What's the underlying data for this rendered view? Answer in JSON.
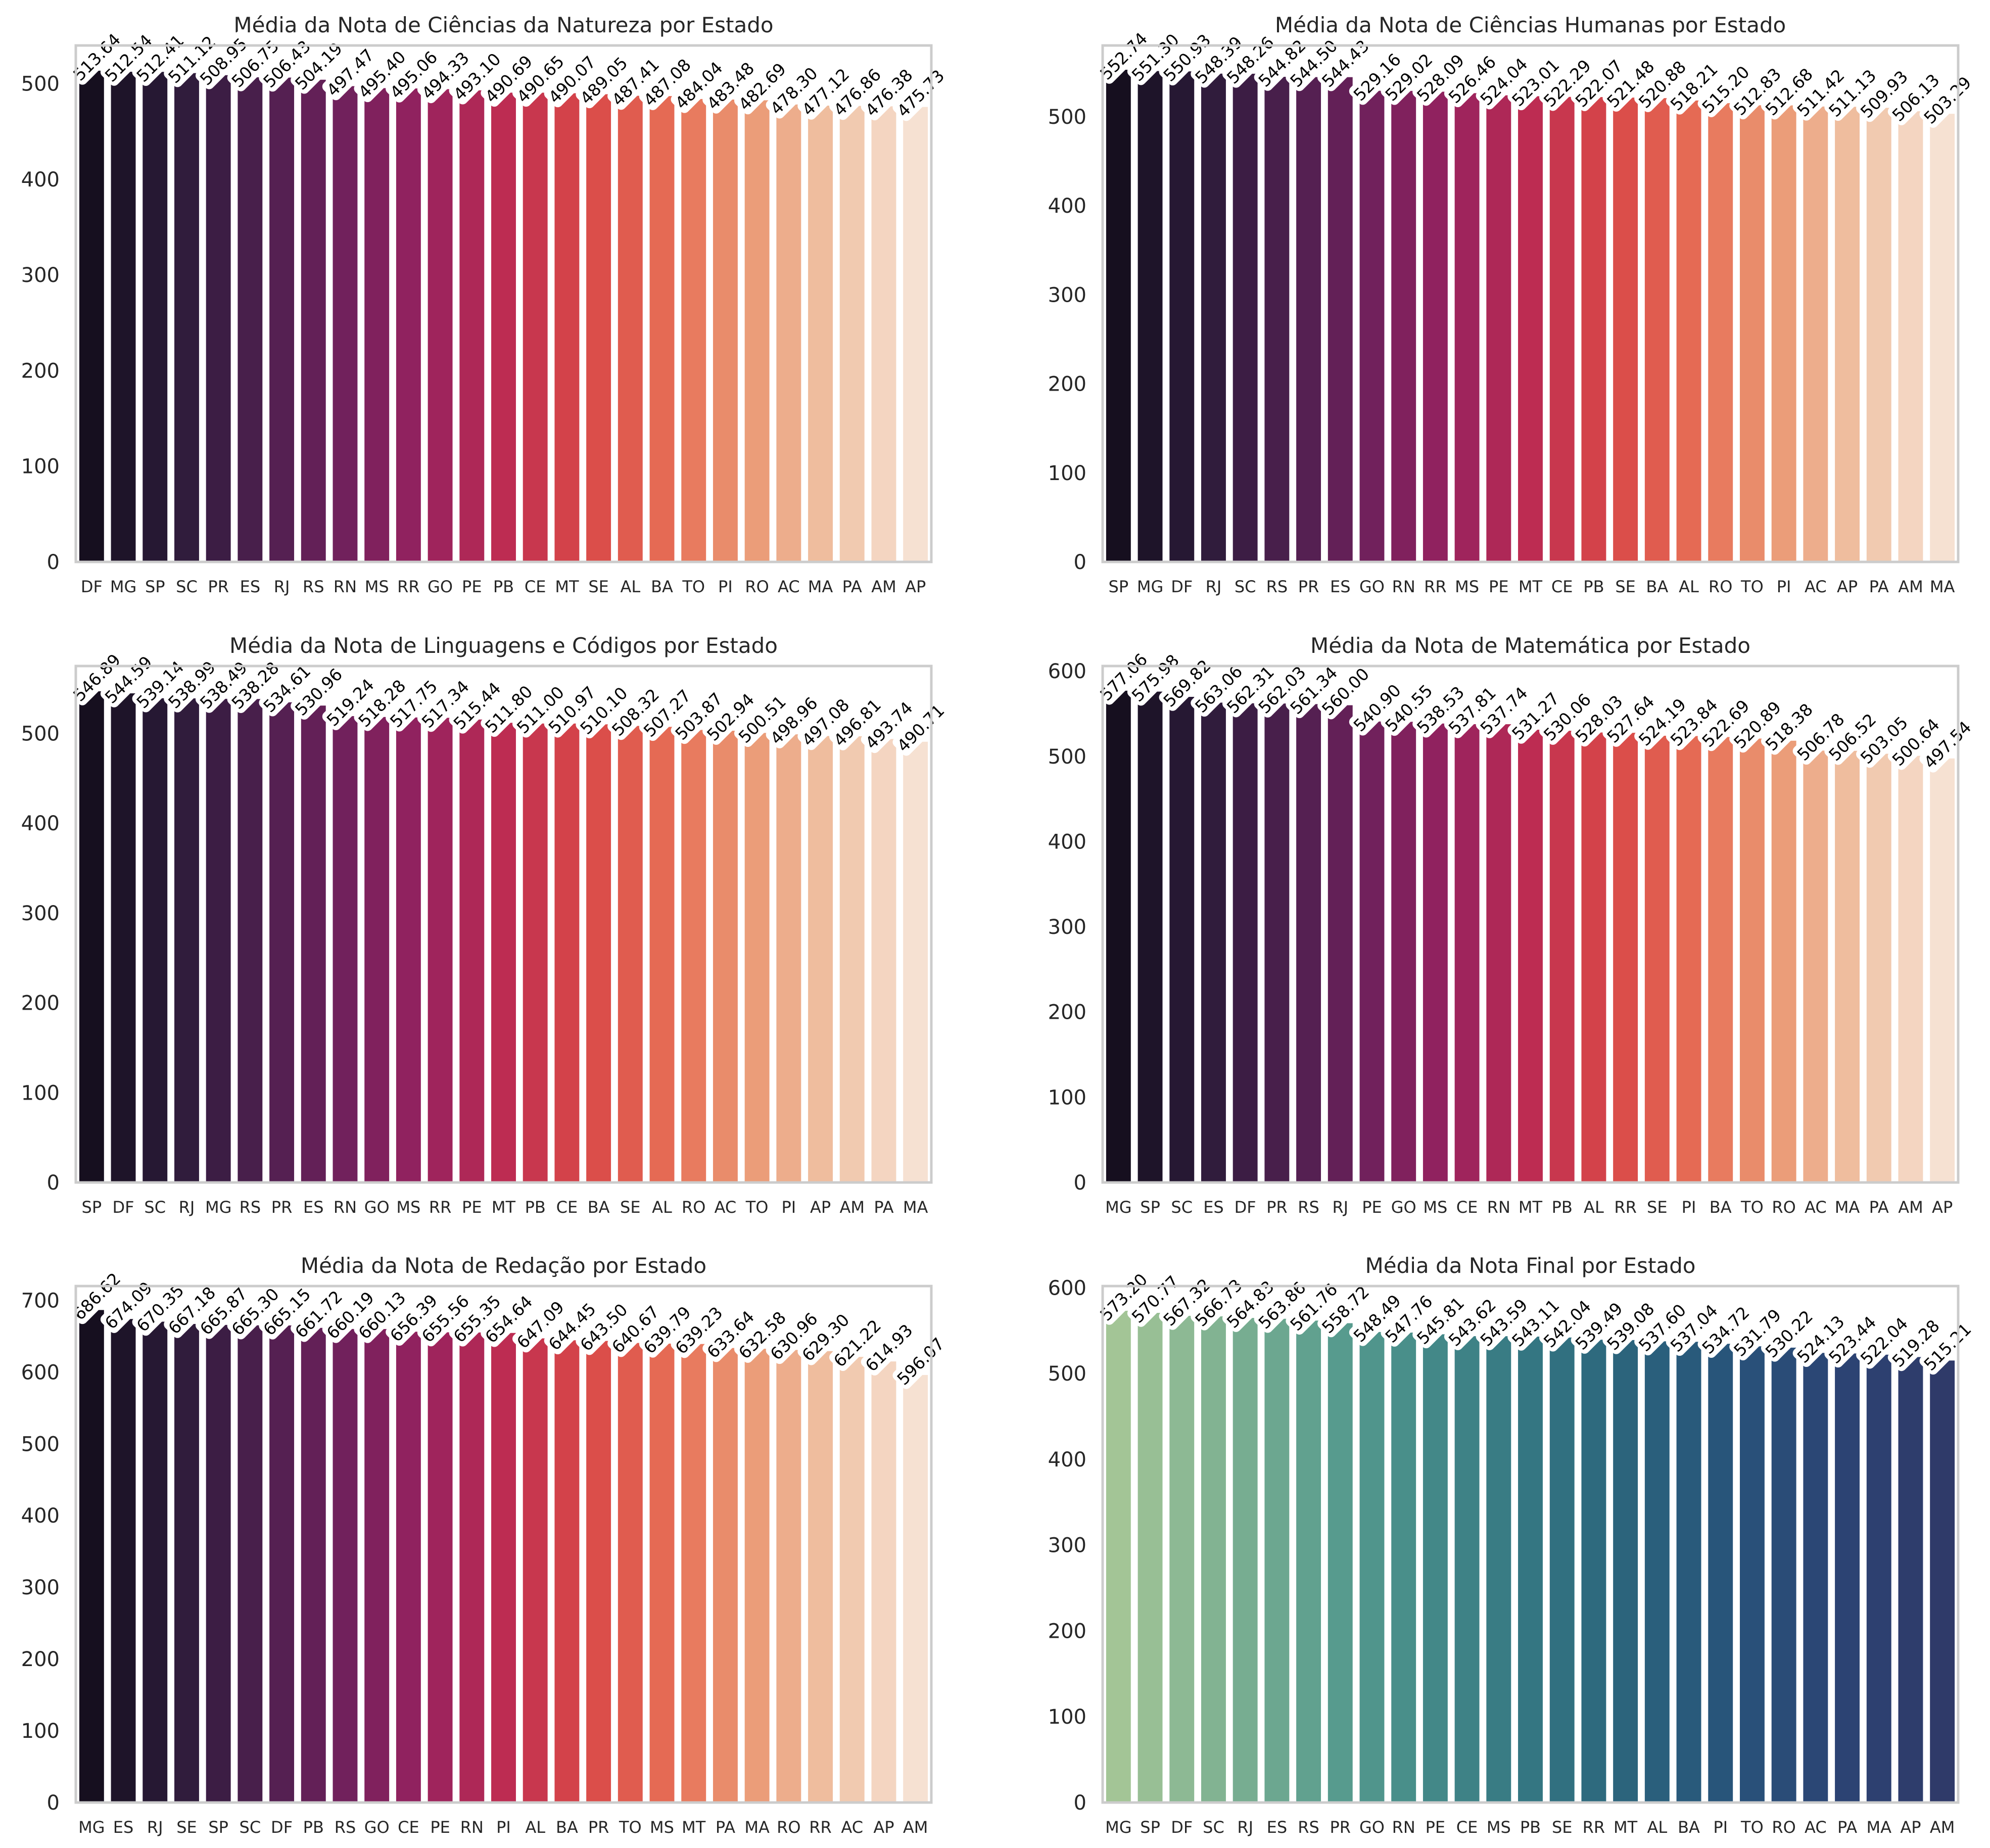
{
  "chart_data": [
    {
      "type": "bar",
      "title": "Média da Nota de Ciências da Natureza por Estado",
      "xlabel": "",
      "ylabel": "",
      "palette": "rocket",
      "ylim": [
        0,
        540
      ],
      "yticks": [
        0,
        100,
        200,
        300,
        400,
        500
      ],
      "categories": [
        "DF",
        "MG",
        "SP",
        "SC",
        "PR",
        "ES",
        "RJ",
        "RS",
        "RN",
        "MS",
        "RR",
        "GO",
        "PE",
        "PB",
        "CE",
        "MT",
        "SE",
        "AL",
        "BA",
        "TO",
        "PI",
        "RO",
        "AC",
        "MA",
        "PA",
        "AM",
        "AP"
      ],
      "values": [
        513.64,
        512.54,
        512.41,
        511.12,
        508.95,
        506.75,
        506.43,
        504.19,
        497.47,
        495.4,
        495.06,
        494.33,
        493.1,
        490.69,
        490.65,
        490.07,
        489.05,
        487.41,
        487.08,
        484.04,
        483.48,
        482.69,
        478.3,
        477.12,
        476.86,
        476.38,
        475.73
      ],
      "value_labels": [
        "513.64",
        "512.54",
        "512.41",
        "511.12",
        "508.95",
        "506.75",
        "506.43",
        "504.19",
        "497.47",
        "495.40",
        "495.06",
        "494.33",
        "493.10",
        "490.69",
        "490.65",
        "490.07",
        "489.05",
        "487.41",
        "487.08",
        "484.04",
        "483.48",
        "482.69",
        "478.30",
        "477.12",
        "476.86",
        "476.38",
        "475.73"
      ]
    },
    {
      "type": "bar",
      "title": "Média da Nota de Ciências Humanas por Estado",
      "xlabel": "",
      "ylabel": "",
      "palette": "rocket",
      "ylim": [
        0,
        580
      ],
      "yticks": [
        0,
        100,
        200,
        300,
        400,
        500
      ],
      "categories": [
        "SP",
        "MG",
        "DF",
        "RJ",
        "SC",
        "RS",
        "PR",
        "ES",
        "GO",
        "RN",
        "RR",
        "MS",
        "PE",
        "MT",
        "CE",
        "PB",
        "SE",
        "BA",
        "AL",
        "RO",
        "TO",
        "PI",
        "AC",
        "AP",
        "PA",
        "AM",
        "MA"
      ],
      "values": [
        552.74,
        551.3,
        550.93,
        548.39,
        548.26,
        544.82,
        544.5,
        544.43,
        529.16,
        529.02,
        528.09,
        526.46,
        524.04,
        523.01,
        522.29,
        522.07,
        521.48,
        520.88,
        518.21,
        515.2,
        512.83,
        512.68,
        511.42,
        511.13,
        509.93,
        506.13,
        503.29
      ],
      "value_labels": [
        "552.74",
        "551.30",
        "550.93",
        "548.39",
        "548.26",
        "544.82",
        "544.50",
        "544.43",
        "529.16",
        "529.02",
        "528.09",
        "526.46",
        "524.04",
        "523.01",
        "522.29",
        "522.07",
        "521.48",
        "520.88",
        "518.21",
        "515.20",
        "512.83",
        "512.68",
        "511.42",
        "511.13",
        "509.93",
        "506.13",
        "503.29"
      ]
    },
    {
      "type": "bar",
      "title": "Média da Nota de Linguagens e Códigos por Estado",
      "xlabel": "",
      "ylabel": "",
      "palette": "rocket",
      "ylim": [
        0,
        575
      ],
      "yticks": [
        0,
        100,
        200,
        300,
        400,
        500
      ],
      "categories": [
        "SP",
        "DF",
        "SC",
        "RJ",
        "MG",
        "RS",
        "PR",
        "ES",
        "RN",
        "GO",
        "MS",
        "RR",
        "PE",
        "MT",
        "PB",
        "CE",
        "BA",
        "SE",
        "AL",
        "RO",
        "AC",
        "TO",
        "PI",
        "AP",
        "AM",
        "PA",
        "MA"
      ],
      "values": [
        546.89,
        544.59,
        539.14,
        538.99,
        538.49,
        538.28,
        534.61,
        530.96,
        519.24,
        518.28,
        517.75,
        517.34,
        515.44,
        511.8,
        511.0,
        510.97,
        510.1,
        508.32,
        507.27,
        503.87,
        502.94,
        500.51,
        498.96,
        497.08,
        496.81,
        493.74,
        490.71
      ],
      "value_labels": [
        "546.89",
        "544.59",
        "539.14",
        "538.99",
        "538.49",
        "538.28",
        "534.61",
        "530.96",
        "519.24",
        "518.28",
        "517.75",
        "517.34",
        "515.44",
        "511.80",
        "511.00",
        "510.97",
        "510.10",
        "508.32",
        "507.27",
        "503.87",
        "502.94",
        "500.51",
        "498.96",
        "497.08",
        "496.81",
        "493.74",
        "490.71"
      ]
    },
    {
      "type": "bar",
      "title": "Média da Nota de Matemática por Estado",
      "xlabel": "",
      "ylabel": "",
      "palette": "rocket",
      "ylim": [
        0,
        606
      ],
      "yticks": [
        0,
        100,
        200,
        300,
        400,
        500,
        600
      ],
      "categories": [
        "MG",
        "SP",
        "SC",
        "ES",
        "DF",
        "PR",
        "RS",
        "RJ",
        "PE",
        "GO",
        "MS",
        "CE",
        "RN",
        "MT",
        "PB",
        "AL",
        "RR",
        "SE",
        "PI",
        "BA",
        "TO",
        "RO",
        "AC",
        "MA",
        "PA",
        "AM",
        "AP"
      ],
      "values": [
        577.06,
        575.98,
        569.82,
        563.06,
        562.31,
        562.03,
        561.34,
        560.0,
        540.9,
        540.55,
        538.53,
        537.81,
        537.74,
        531.27,
        530.06,
        528.03,
        527.64,
        524.19,
        523.84,
        522.69,
        520.89,
        518.38,
        506.78,
        506.52,
        503.05,
        500.64,
        497.54
      ],
      "value_labels": [
        "577.06",
        "575.98",
        "569.82",
        "563.06",
        "562.31",
        "562.03",
        "561.34",
        "560.00",
        "540.90",
        "540.55",
        "538.53",
        "537.81",
        "537.74",
        "531.27",
        "530.06",
        "528.03",
        "527.64",
        "524.19",
        "523.84",
        "522.69",
        "520.89",
        "518.38",
        "506.78",
        "506.52",
        "503.05",
        "500.64",
        "497.54"
      ]
    },
    {
      "type": "bar",
      "title": "Média da Nota de Redação por Estado",
      "xlabel": "",
      "ylabel": "",
      "palette": "rocket",
      "ylim": [
        0,
        720
      ],
      "yticks": [
        0,
        100,
        200,
        300,
        400,
        500,
        600,
        700
      ],
      "categories": [
        "MG",
        "ES",
        "RJ",
        "SE",
        "SP",
        "SC",
        "DF",
        "PB",
        "RS",
        "GO",
        "CE",
        "PE",
        "RN",
        "PI",
        "AL",
        "BA",
        "PR",
        "TO",
        "MS",
        "MT",
        "PA",
        "MA",
        "RO",
        "RR",
        "AC",
        "AP",
        "AM"
      ],
      "values": [
        686.62,
        674.09,
        670.35,
        667.18,
        665.87,
        665.3,
        665.15,
        661.72,
        660.19,
        660.13,
        656.39,
        655.56,
        655.35,
        654.64,
        647.09,
        644.45,
        643.5,
        640.67,
        639.79,
        639.23,
        633.64,
        632.58,
        630.96,
        629.3,
        621.22,
        614.93,
        596.07
      ],
      "value_labels": [
        "686.62",
        "674.09",
        "670.35",
        "667.18",
        "665.87",
        "665.30",
        "665.15",
        "661.72",
        "660.19",
        "660.13",
        "656.39",
        "655.56",
        "655.35",
        "654.64",
        "647.09",
        "644.45",
        "643.50",
        "640.67",
        "639.79",
        "639.23",
        "633.64",
        "632.58",
        "630.96",
        "629.30",
        "621.22",
        "614.93",
        "596.07"
      ]
    },
    {
      "type": "bar",
      "title": "Média da Nota Final por Estado",
      "xlabel": "",
      "ylabel": "",
      "palette": "crest",
      "ylim": [
        0,
        602
      ],
      "yticks": [
        0,
        100,
        200,
        300,
        400,
        500,
        600
      ],
      "categories": [
        "MG",
        "SP",
        "DF",
        "SC",
        "RJ",
        "ES",
        "RS",
        "PR",
        "GO",
        "RN",
        "PE",
        "CE",
        "MS",
        "PB",
        "SE",
        "RR",
        "MT",
        "AL",
        "BA",
        "PI",
        "TO",
        "RO",
        "AC",
        "PA",
        "MA",
        "AP",
        "AM"
      ],
      "values": [
        573.2,
        570.77,
        567.32,
        566.73,
        564.83,
        563.86,
        561.76,
        558.72,
        548.49,
        547.76,
        545.81,
        543.62,
        543.59,
        543.11,
        542.04,
        539.49,
        539.08,
        537.6,
        537.04,
        534.72,
        531.79,
        530.22,
        524.13,
        523.44,
        522.04,
        519.28,
        515.21
      ],
      "value_labels": [
        "573.20",
        "570.77",
        "567.32",
        "566.73",
        "564.83",
        "563.86",
        "561.76",
        "558.72",
        "548.49",
        "547.76",
        "545.81",
        "543.62",
        "543.59",
        "543.11",
        "542.04",
        "539.49",
        "539.08",
        "537.60",
        "537.04",
        "534.72",
        "531.79",
        "530.22",
        "524.13",
        "523.44",
        "522.04",
        "519.28",
        "515.21"
      ]
    }
  ],
  "colors": {
    "rocket": [
      "#160f1f",
      "#2b1b39",
      "#4a1f4d",
      "#6e215c",
      "#96225f",
      "#bd2c52",
      "#d94848",
      "#e66d55",
      "#eb9a75",
      "#f0c3a6",
      "#f6e1d2"
    ],
    "crest": [
      "#a3c596",
      "#7fb292",
      "#5b9e8f",
      "#448a88",
      "#347682",
      "#2b637c",
      "#28527a",
      "#2c4474",
      "#2f3a69"
    ],
    "axes_edge": "#cccccc",
    "text": "#262626",
    "label_text": "#000000",
    "label_halo": "#ffffff"
  }
}
